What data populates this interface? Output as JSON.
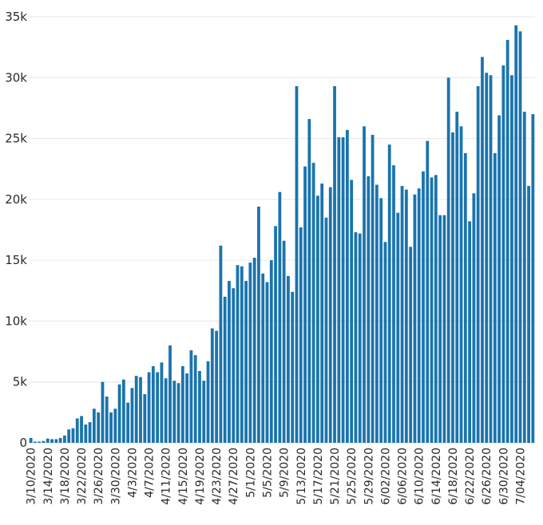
{
  "chart_data": {
    "type": "bar",
    "title": "",
    "xlabel": "",
    "ylabel": "",
    "ylim": [
      0,
      35000
    ],
    "yticks": [
      0,
      5000,
      10000,
      15000,
      20000,
      25000,
      30000,
      35000
    ],
    "ytick_labels": [
      "0",
      "5k",
      "10k",
      "15k",
      "20k",
      "25k",
      "30k",
      "35k"
    ],
    "grid": true,
    "bar_color": "#1a74ad",
    "categories": [
      "3/10/2020",
      "3/11/2020",
      "3/12/2020",
      "3/13/2020",
      "3/14/2020",
      "3/15/2020",
      "3/16/2020",
      "3/17/2020",
      "3/18/2020",
      "3/19/2020",
      "3/20/2020",
      "3/21/2020",
      "3/22/2020",
      "3/23/2020",
      "3/24/2020",
      "3/25/2020",
      "3/26/2020",
      "3/27/2020",
      "3/28/2020",
      "3/29/2020",
      "3/30/2020",
      "3/31/2020",
      "4/1/2020",
      "4/2/2020",
      "4/3/2020",
      "4/4/2020",
      "4/5/2020",
      "4/6/2020",
      "4/7/2020",
      "4/8/2020",
      "4/9/2020",
      "4/10/2020",
      "4/11/2020",
      "4/12/2020",
      "4/13/2020",
      "4/14/2020",
      "4/15/2020",
      "4/16/2020",
      "4/17/2020",
      "4/18/2020",
      "4/19/2020",
      "4/20/2020",
      "4/21/2020",
      "4/22/2020",
      "4/23/2020",
      "4/24/2020",
      "4/25/2020",
      "4/26/2020",
      "4/27/2020",
      "4/28/2020",
      "4/29/2020",
      "4/30/2020",
      "5/1/2020",
      "5/2/2020",
      "5/3/2020",
      "5/4/2020",
      "5/5/2020",
      "5/6/2020",
      "5/7/2020",
      "5/8/2020",
      "5/9/2020",
      "5/10/2020",
      "5/11/2020",
      "5/12/2020",
      "5/13/2020",
      "5/14/2020",
      "5/15/2020",
      "5/16/2020",
      "5/17/2020",
      "5/18/2020",
      "5/19/2020",
      "5/20/2020",
      "5/21/2020",
      "5/22/2020",
      "5/23/2020",
      "5/24/2020",
      "5/25/2020",
      "5/26/2020",
      "5/27/2020",
      "5/28/2020",
      "5/29/2020",
      "5/30/2020",
      "5/31/2020",
      "6/01/2020",
      "6/02/2020",
      "6/03/2020",
      "6/04/2020",
      "6/05/2020",
      "6/06/2020",
      "6/07/2020",
      "6/08/2020",
      "6/09/2020",
      "6/10/2020",
      "6/11/2020",
      "6/12/2020",
      "6/13/2020",
      "6/14/2020",
      "6/15/2020",
      "6/16/2020",
      "6/17/2020",
      "6/18/2020",
      "6/19/2020",
      "6/20/2020",
      "6/21/2020",
      "6/22/2020",
      "6/23/2020",
      "6/24/2020",
      "6/25/2020",
      "6/26/2020",
      "6/27/2020",
      "6/28/2020",
      "6/29/2020",
      "6/30/2020",
      "7/01/2020",
      "7/02/2020",
      "7/03/2020",
      "7/04/2020",
      "7/05/2020",
      "7/06/2020",
      "7/07/2020"
    ],
    "values": [
      400,
      100,
      100,
      150,
      350,
      300,
      300,
      400,
      600,
      1100,
      1200,
      2000,
      2200,
      1500,
      1700,
      2800,
      2500,
      5000,
      3800,
      2500,
      2800,
      4800,
      5200,
      3300,
      4500,
      5500,
      5400,
      4000,
      5800,
      6300,
      5800,
      6600,
      5300,
      8000,
      5100,
      4900,
      6300,
      5700,
      7600,
      7200,
      5900,
      5100,
      6700,
      9400,
      9200,
      16200,
      12000,
      13300,
      12700,
      14600,
      14500,
      13300,
      14800,
      15200,
      19400,
      13900,
      13200,
      15000,
      17800,
      20600,
      16600,
      13700,
      12400,
      29300,
      17700,
      22700,
      26600,
      23000,
      20300,
      21300,
      18500,
      21000,
      29300,
      25100,
      25100,
      25700,
      21600,
      17300,
      17200,
      26000,
      21900,
      25300,
      21200,
      20100,
      16500,
      24500,
      22800,
      18900,
      21100,
      20800,
      16100,
      20400,
      20900,
      22300,
      24800,
      21800,
      22000,
      18700,
      18700,
      30000,
      25500,
      27200,
      26000,
      23800,
      18200,
      20500,
      29300,
      31700,
      30400,
      30200,
      23800,
      26900,
      31000,
      33100,
      30200,
      34300,
      33800,
      27200,
      21100,
      27000
    ],
    "xtick_labels": [
      "3/10/2020",
      "3/14/2020",
      "3/18/2020",
      "3/22/2020",
      "3/26/2020",
      "3/30/2020",
      "4/3/2020",
      "4/7/2020",
      "4/11/2020",
      "4/15/2020",
      "4/19/2020",
      "4/23/2020",
      "4/27/2020",
      "5/1/2020",
      "5/5/2020",
      "5/9/2020",
      "5/13/2020",
      "5/17/2020",
      "5/21/2020",
      "5/25/2020",
      "5/29/2020",
      "6/02/2020",
      "6/06/2020",
      "6/10/2020",
      "6/14/2020",
      "6/18/2020",
      "6/22/2020",
      "6/26/2020",
      "6/30/2020",
      "7/04/2020"
    ],
    "xtick_every": 4
  }
}
